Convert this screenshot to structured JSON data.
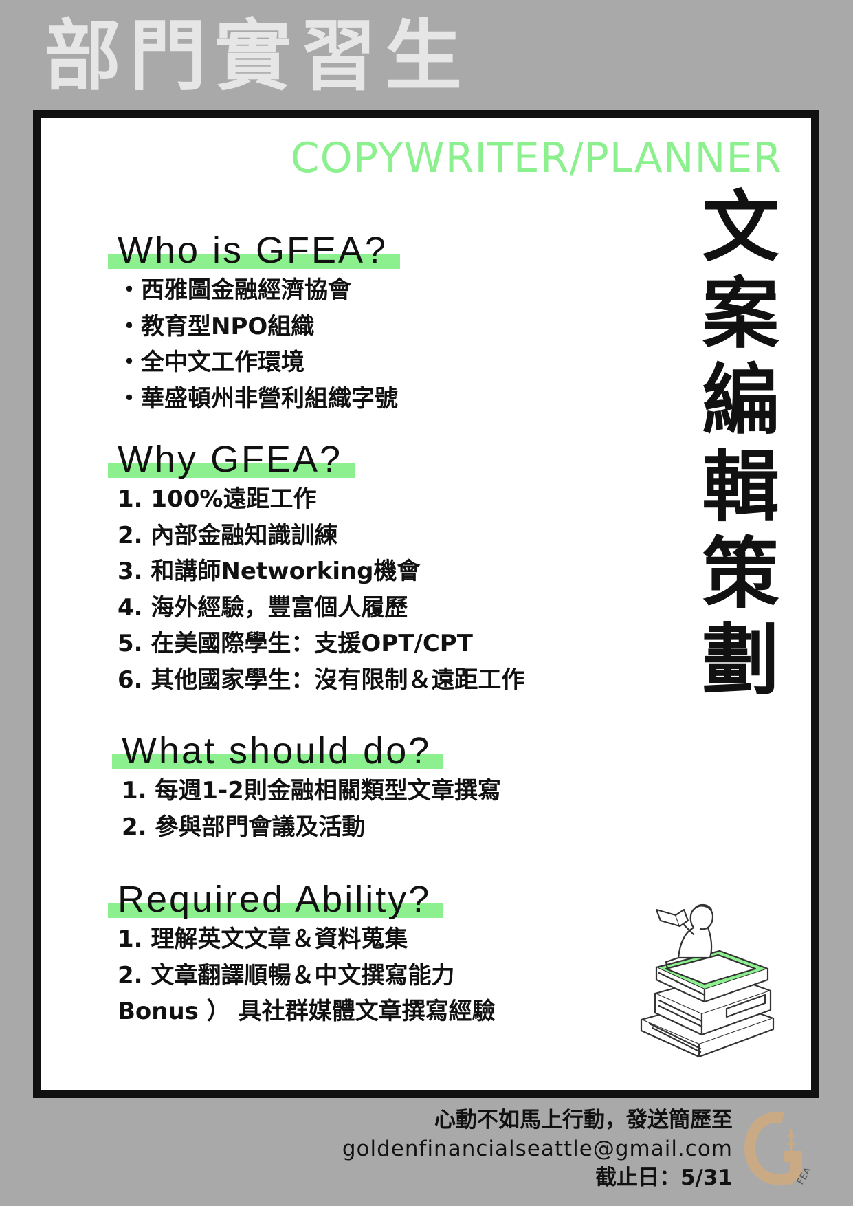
{
  "header": {
    "title": "部門實習生"
  },
  "role": {
    "title_en": "COPYWRITER/PLANNER",
    "title_zh_chars": [
      "文",
      "案",
      "編",
      "輯",
      "策",
      "劃"
    ]
  },
  "sections": [
    {
      "heading": "Who is GFEA?",
      "items": [
        "・西雅圖金融經濟協會",
        "・教育型NPO組織",
        "・全中文工作環境",
        "・華盛頓州非營利組織字號"
      ]
    },
    {
      "heading": "Why GFEA?",
      "items": [
        "1. 100%遠距工作",
        "2. 內部金融知識訓練",
        "3. 和講師Networking機會",
        "4. 海外經驗，豐富個人履歷",
        "5. 在美國際學生：支援OPT/CPT",
        "6. 其他國家學生：沒有限制＆遠距工作"
      ]
    },
    {
      "heading": "What should do?",
      "items": [
        "1. 每週1-2則金融相關類型文章撰寫",
        "2. 參與部門會議及活動"
      ]
    },
    {
      "heading": "Required Ability?",
      "items": [
        "1. 理解英文文章＆資料蒐集",
        "2. 文章翻譯順暢＆中文撰寫能力",
        "Bonus ） 具社群媒體文章撰寫經驗"
      ]
    }
  ],
  "footer": {
    "cta": "心動不如馬上行動，發送簡歷至",
    "email": "goldenfinancialseattle@gmail.com",
    "deadline": "截止日：5/31"
  },
  "logo": {
    "text": "FEA",
    "icon": "gfea-logo-icon"
  },
  "illustration": {
    "icon": "person-reading-on-books-icon"
  },
  "colors": {
    "background": "#a9a9a9",
    "accent": "#8df08f",
    "logo": "#c9aa85",
    "title": "#e6e6e6"
  }
}
